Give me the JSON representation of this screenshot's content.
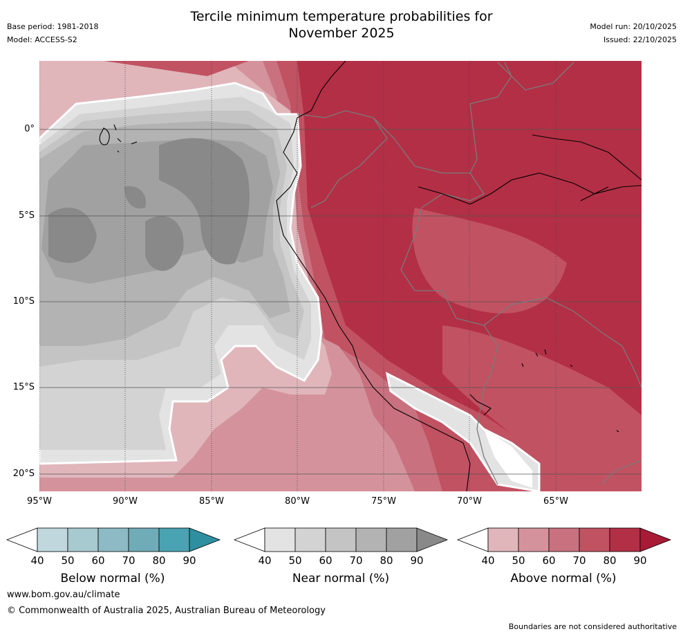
{
  "title": {
    "line1": "Tercile minimum temperature probabilities for",
    "line2": "November 2025"
  },
  "meta": {
    "base_period": "Base period: 1981-2018",
    "model": "Model: ACCESS-S2",
    "model_run": "Model run: 20/10/2025",
    "issued": "Issued: 22/10/2025"
  },
  "axes": {
    "lat_labels": [
      "0°",
      "5°S",
      "10°S",
      "15°S",
      "20°S"
    ],
    "lon_labels": [
      "95°W",
      "90°W",
      "85°W",
      "80°W",
      "75°W",
      "70°W",
      "65°W"
    ]
  },
  "legend": {
    "below": {
      "title": "Below normal (%)",
      "ticks": [
        "40",
        "50",
        "60",
        "70",
        "80",
        "90"
      ],
      "colors": [
        "#ffffff",
        "#bfd7dd",
        "#a7c9d0",
        "#8dbac4",
        "#70abb8",
        "#4aa3b2",
        "#2d8fa0"
      ]
    },
    "near": {
      "title": "Near normal (%)",
      "ticks": [
        "40",
        "50",
        "60",
        "70",
        "80",
        "90"
      ],
      "colors": [
        "#ffffff",
        "#e3e3e3",
        "#d3d3d3",
        "#c4c4c4",
        "#b3b3b3",
        "#a1a1a1",
        "#898989"
      ]
    },
    "above": {
      "title": "Above normal (%)",
      "ticks": [
        "40",
        "50",
        "60",
        "70",
        "80",
        "90"
      ],
      "colors": [
        "#ffffff",
        "#e0b6bb",
        "#d4939c",
        "#c9717f",
        "#c15262",
        "#b32f45",
        "#a81a35"
      ]
    }
  },
  "footer": {
    "url": "www.bom.gov.au/climate",
    "copyright": "© Commonwealth of Australia 2025, Australian Bureau of Meteorology",
    "disclaimer": "Boundaries are not considered authoritative"
  }
}
